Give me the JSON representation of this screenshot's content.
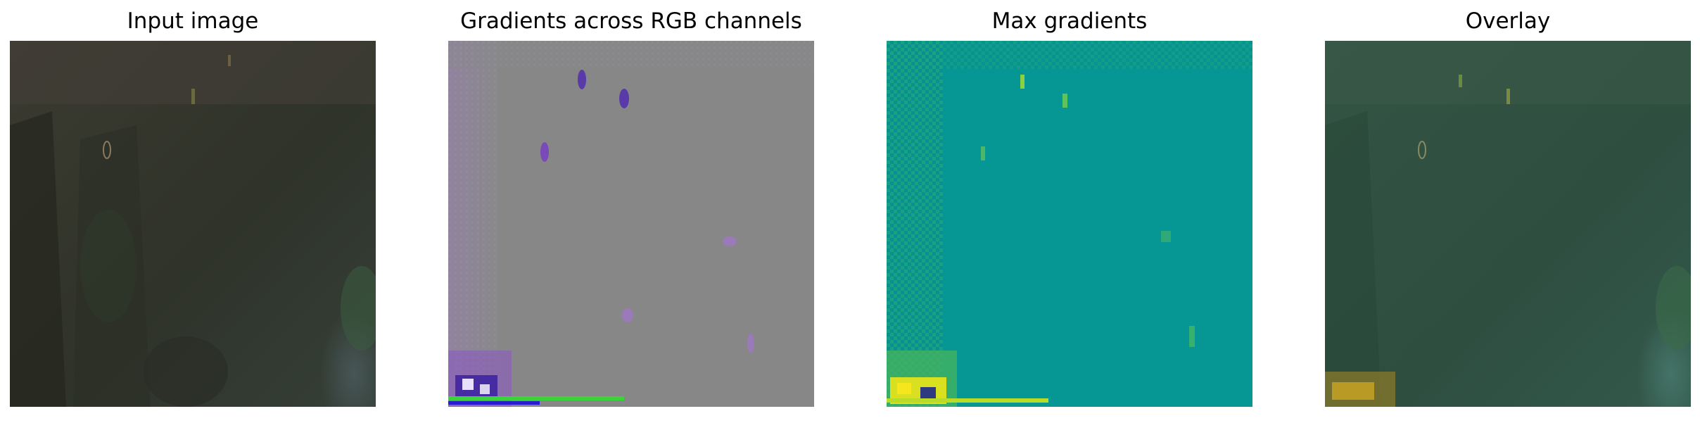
{
  "figure": {
    "panels": [
      {
        "title": "Input image"
      },
      {
        "title": "Gradients across RGB channels"
      },
      {
        "title": "Max gradients"
      },
      {
        "title": "Overlay"
      }
    ]
  },
  "colors": {
    "input_base": "#3a3a30",
    "rgb_gradient_base": "#878787",
    "max_gradient_base": "#069693",
    "overlay_base": "#305444",
    "highlight_yellow": "#f2e21c",
    "highlight_purple": "#6a2fd0"
  }
}
